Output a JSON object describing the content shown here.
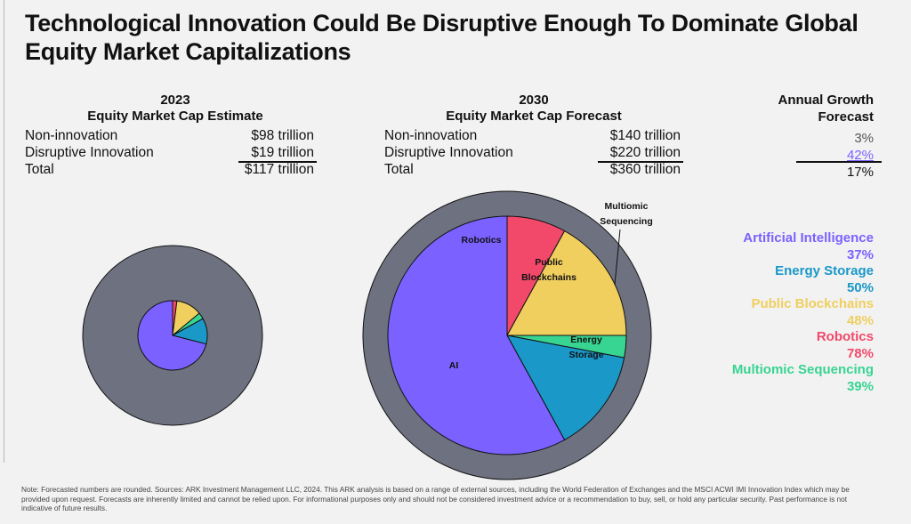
{
  "title": "Technological Innovation Could Be Disruptive Enough To Dominate Global Equity Market Capitalizations",
  "table_2023": {
    "header_year": "2023",
    "header_sub": "Equity Market Cap Estimate",
    "rows": [
      {
        "label": "Non-innovation",
        "value": "$98 trillion"
      },
      {
        "label": "Disruptive Innovation",
        "value": "$19 trillion"
      },
      {
        "label": "Total",
        "value": "$117 trillion"
      }
    ]
  },
  "table_2030": {
    "header_year": "2030",
    "header_sub": "Equity Market Cap Forecast",
    "rows": [
      {
        "label": "Non-innovation",
        "value": "$140 trillion"
      },
      {
        "label": "Disruptive Innovation",
        "value": "$220 trillion"
      },
      {
        "label": "Total",
        "value": "$360 trillion"
      }
    ]
  },
  "growth": {
    "header_l1": "Annual Growth",
    "header_l2": "Forecast",
    "values": [
      "3%",
      "42%",
      "17%"
    ]
  },
  "legend": [
    {
      "name": "Artificial Intelligence",
      "value": "37%",
      "color": "#7b61ff"
    },
    {
      "name": "Energy Storage",
      "value": "50%",
      "color": "#1a98c8"
    },
    {
      "name": "Public Blockchains",
      "value": "48%",
      "color": "#f0cf5f"
    },
    {
      "name": "Robotics",
      "value": "78%",
      "color": "#f2496b"
    },
    {
      "name": "Multiomic Sequencing",
      "value": "39%",
      "color": "#37d492"
    }
  ],
  "chart_labels": {
    "robotics": "Robotics",
    "public_blockchains_1": "Public",
    "public_blockchains_2": "Blockchains",
    "multiomic_1": "Multiomic",
    "multiomic_2": "Sequencing",
    "energy_storage_1": "Energy",
    "energy_storage_2": "Storage",
    "ai": "AI"
  },
  "note": "Note: Forecasted numbers are rounded. Sources: ARK Investment Management LLC, 2024. This ARK analysis is based on a range of external sources, including the World Federation of Exchanges and the MSCI ACWI IMI Innovation Index which may be provided upon request. Forecasts are inherently limited and cannot be relied upon. For informational purposes only and should not be considered investment advice or a recommendation to buy, sell, or hold any particular security. Past performance is not indicative of future results.",
  "chart_data": [
    {
      "type": "pie",
      "name_year": "2023",
      "total": 117,
      "outer": {
        "categories": [
          "Non-innovation",
          "Disruptive Innovation"
        ],
        "values": [
          98,
          19
        ],
        "colors": [
          "#6e7280",
          "#f2f2f2"
        ]
      },
      "inner": {
        "categories": [
          "Robotics",
          "Public Blockchains",
          "Multiomic Sequencing",
          "Energy Storage",
          "Artificial Intelligence"
        ],
        "values": [
          2,
          12,
          3,
          12,
          71
        ],
        "colors": [
          "#f2496b",
          "#f0cf5f",
          "#37d492",
          "#1a98c8",
          "#7b61ff"
        ]
      }
    },
    {
      "type": "pie",
      "name_year": "2030",
      "total": 360,
      "outer": {
        "categories": [
          "Non-innovation",
          "Disruptive Innovation"
        ],
        "values": [
          140,
          220
        ],
        "colors": [
          "#6e7280",
          "#f2f2f2"
        ]
      },
      "inner": {
        "categories": [
          "Robotics",
          "Public Blockchains",
          "Multiomic Sequencing",
          "Energy Storage",
          "Artificial Intelligence"
        ],
        "values": [
          8,
          17,
          3,
          14,
          58
        ],
        "colors": [
          "#f2496b",
          "#f0cf5f",
          "#37d492",
          "#1a98c8",
          "#7b61ff"
        ]
      }
    }
  ]
}
